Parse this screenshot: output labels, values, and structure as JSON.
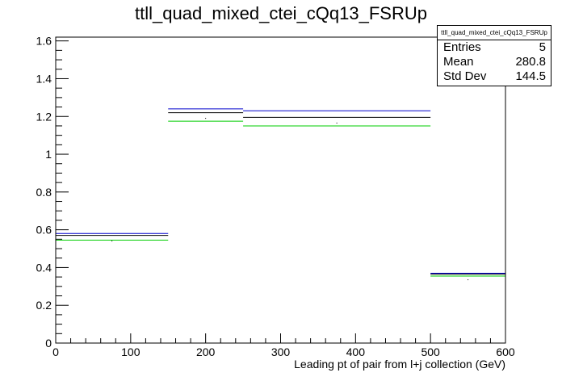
{
  "title": "ttll_quad_mixed_ctei_cQq13_FSRUp",
  "stats": {
    "name": "ttll_quad_mixed_ctei_cQq13_FSRUp",
    "rows": [
      {
        "label": "Entries",
        "value": "5"
      },
      {
        "label": "Mean",
        "value": "280.8"
      },
      {
        "label": "Std Dev",
        "value": "144.5"
      }
    ]
  },
  "chart_data": {
    "type": "histogram",
    "xlabel": "Leading pt of pair from l+j collection (GeV)",
    "ylabel": "",
    "xlim": [
      0,
      600
    ],
    "ylim": [
      0,
      1.62
    ],
    "x_ticks": [
      0,
      100,
      200,
      300,
      400,
      500,
      600
    ],
    "y_ticks": [
      0,
      0.2,
      0.4,
      0.6,
      0.8,
      1,
      1.2,
      1.4,
      1.6
    ],
    "y_tick_labels": [
      "0",
      "0.2",
      "0.4",
      "0.6",
      "0.8",
      "1",
      "1.2",
      "1.4",
      "1.6"
    ],
    "bin_edges": [
      0,
      150,
      250,
      500,
      600
    ],
    "series": [
      {
        "color": "#0000cc",
        "values": [
          0.58,
          1.24,
          1.23,
          0.37
        ]
      },
      {
        "color": "#000000",
        "values": [
          0.57,
          1.22,
          1.195,
          0.365
        ]
      },
      {
        "color": "#00cc00",
        "values": [
          0.545,
          1.175,
          1.15,
          0.355
        ]
      }
    ],
    "grid": false,
    "legend": "stats box top-right"
  }
}
